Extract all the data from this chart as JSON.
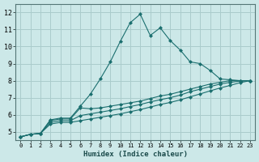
{
  "xlabel": "Humidex (Indice chaleur)",
  "bg_color": "#cce8e8",
  "grid_color": "#aacccc",
  "line_color": "#1a6e6e",
  "xlim": [
    -0.5,
    23.5
  ],
  "ylim": [
    4.5,
    12.5
  ],
  "xticks": [
    0,
    1,
    2,
    3,
    4,
    5,
    6,
    7,
    8,
    9,
    10,
    11,
    12,
    13,
    14,
    15,
    16,
    17,
    18,
    19,
    20,
    21,
    22,
    23
  ],
  "yticks": [
    5,
    6,
    7,
    8,
    9,
    10,
    11,
    12
  ],
  "series": [
    [
      4.7,
      4.85,
      4.9,
      5.7,
      5.8,
      5.8,
      6.5,
      7.2,
      8.1,
      9.1,
      10.3,
      11.4,
      11.9,
      10.65,
      11.1,
      10.35,
      9.8,
      9.1,
      9.0,
      8.6,
      8.1,
      8.05,
      8.0,
      8.0
    ],
    [
      4.7,
      4.85,
      4.9,
      5.65,
      5.75,
      5.75,
      6.4,
      6.35,
      6.4,
      6.5,
      6.6,
      6.7,
      6.8,
      6.95,
      7.1,
      7.2,
      7.35,
      7.5,
      7.65,
      7.8,
      7.9,
      8.0,
      8.0,
      8.0
    ],
    [
      4.7,
      4.85,
      4.9,
      5.55,
      5.65,
      5.65,
      5.95,
      6.05,
      6.15,
      6.25,
      6.35,
      6.48,
      6.6,
      6.75,
      6.88,
      7.0,
      7.15,
      7.35,
      7.5,
      7.65,
      7.8,
      7.9,
      7.97,
      8.0
    ],
    [
      4.7,
      4.85,
      4.9,
      5.45,
      5.55,
      5.55,
      5.65,
      5.75,
      5.85,
      5.95,
      6.05,
      6.18,
      6.3,
      6.45,
      6.6,
      6.72,
      6.87,
      7.05,
      7.22,
      7.4,
      7.57,
      7.72,
      7.88,
      8.0
    ]
  ]
}
